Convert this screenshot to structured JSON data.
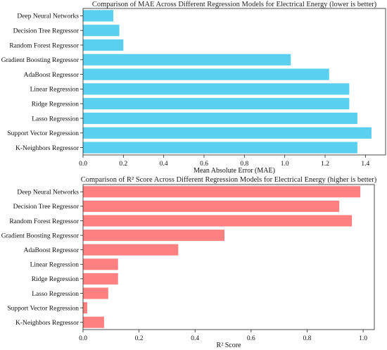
{
  "chart_data": [
    {
      "type": "bar",
      "orientation": "horizontal",
      "title": "Comparison of MAE Across Different Regression Models for Electrical Energy (lower is better)",
      "xlabel": "Mean Absolute Error (MAE)",
      "ylabel": "",
      "categories": [
        "Deep Neural Networks",
        "Decision Tree Regressor",
        "Random Forest Regressor",
        "Gradient Boosting Regressor",
        "AdaBoost Regressor",
        "Linear Regression",
        "Ridge Regression",
        "Lasso Regression",
        "Support Vector Regression",
        "K-Neighbors Regressor"
      ],
      "values": [
        0.15,
        0.18,
        0.2,
        1.03,
        1.22,
        1.32,
        1.32,
        1.36,
        1.43,
        1.36
      ],
      "xlim": [
        0,
        1.5
      ],
      "xticks": [
        "0.0",
        "0.2",
        "0.4",
        "0.6",
        "0.8",
        "1.0",
        "1.2",
        "1.4"
      ],
      "color": "#5bcfee",
      "grid": false
    },
    {
      "type": "bar",
      "orientation": "horizontal",
      "title": "Comparison of R² Score Across Different Regression Models for Electrical Energy (higher is better)",
      "xlabel": "R² Score",
      "ylabel": "",
      "categories": [
        "Deep Neural Networks",
        "Decision Tree Regressor",
        "Random Forest Regressor",
        "Gradient Boosting Regressor",
        "AdaBoost Regressor",
        "Linear Regression",
        "Ridge Regression",
        "Lasso Regression",
        "Support Vector Regression",
        "K-Neighbors Regressor"
      ],
      "values": [
        0.99,
        0.915,
        0.96,
        0.505,
        0.34,
        0.125,
        0.125,
        0.09,
        0.015,
        0.075
      ],
      "xlim": [
        0,
        1.04
      ],
      "xticks": [
        "0.0",
        "0.2",
        "0.4",
        "0.6",
        "0.8",
        "1.0"
      ],
      "color": "#ff8080",
      "grid": false
    }
  ]
}
